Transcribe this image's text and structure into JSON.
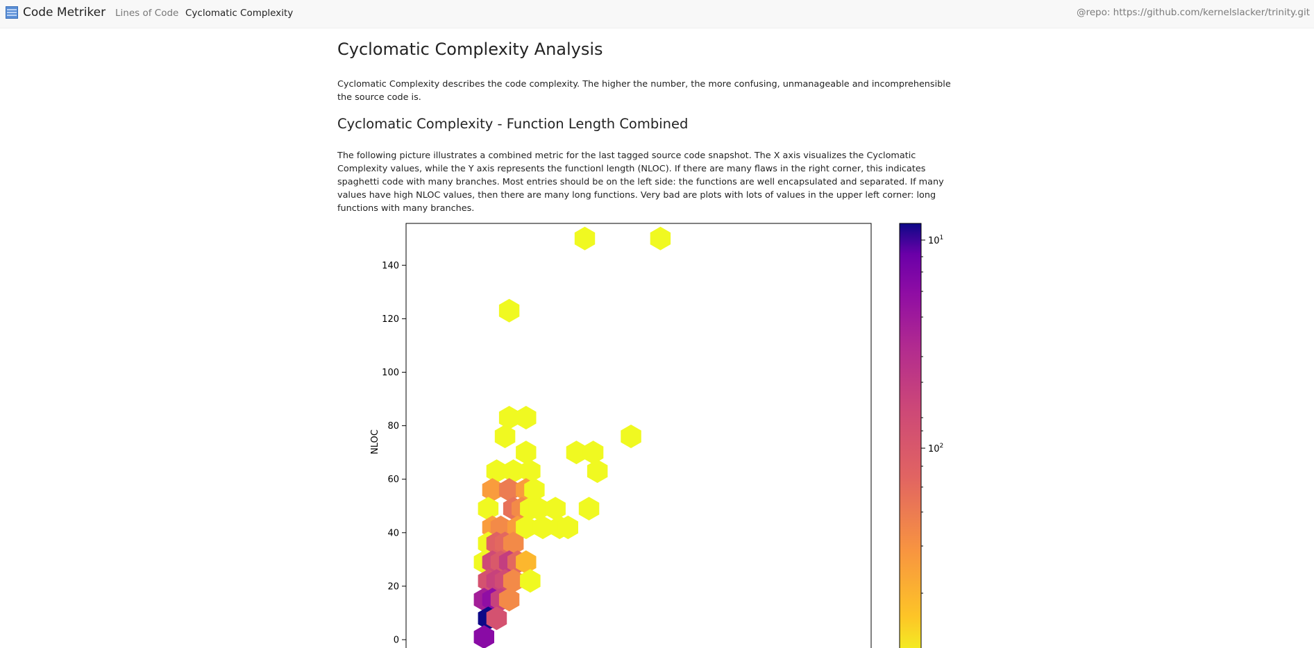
{
  "navbar": {
    "brand": "Code Metriker",
    "links": [
      "Lines of Code",
      "Cyclomatic Complexity"
    ],
    "repo": "@repo: https://github.com/kernelslacker/trinity.git"
  },
  "page": {
    "title": "Cyclomatic Complexity Analysis",
    "intro": "Cyclomatic Complexity describes the code complexity. The higher the number, the more confusing, unmanageable and incomprehensible the source code is.",
    "section_title": "Cyclomatic Complexity - Function Length Combined",
    "section_text": "The following picture illustrates a combined metric for the last tagged source code snapshot. The X axis visualizes the Cyclomatic Complexity values, while the Y axis represents the functionl length (NLOC). If there are many flaws in the right corner, this indicates spaghetti code with many branches. Most entries should be on the left side: the functions are well encapsulated and separated. If many values have high NLOC values, then there are many long functions. Very bad are plots with lots of values in the upper left corner: long functions with many branches."
  },
  "chart_data": {
    "type": "heatmap",
    "ylabel": "NLOC",
    "yticks": [
      0,
      20,
      40,
      60,
      80,
      100,
      120,
      140
    ],
    "ylim": [
      -3,
      156
    ],
    "colorbar": {
      "scale": "log",
      "ticks": [
        "10^1",
        "10^2"
      ],
      "colormap": "plasma_r"
    },
    "colors": {
      "low": "#f0f921",
      "high": "#0d0887"
    },
    "cells": [
      {
        "x": 1,
        "y": 150,
        "count": 1
      },
      {
        "x": 2.8,
        "y": 150,
        "count": 1
      },
      {
        "x": -0.8,
        "y": 123,
        "count": 1
      },
      {
        "x": -0.8,
        "y": 83,
        "count": 1
      },
      {
        "x": -0.4,
        "y": 83,
        "count": 1
      },
      {
        "x": -0.9,
        "y": 76,
        "count": 1
      },
      {
        "x": 2.1,
        "y": 76,
        "count": 1
      },
      {
        "x": -0.4,
        "y": 70,
        "count": 1
      },
      {
        "x": 0.8,
        "y": 70,
        "count": 1
      },
      {
        "x": 1.2,
        "y": 70,
        "count": 1
      },
      {
        "x": -1.1,
        "y": 63,
        "count": 1
      },
      {
        "x": -0.7,
        "y": 63,
        "count": 1
      },
      {
        "x": -0.3,
        "y": 63,
        "count": 1
      },
      {
        "x": 1.3,
        "y": 63,
        "count": 1
      },
      {
        "x": -1.2,
        "y": 56,
        "count": 3
      },
      {
        "x": -0.8,
        "y": 56,
        "count": 5
      },
      {
        "x": -0.4,
        "y": 56,
        "count": 3
      },
      {
        "x": -0.2,
        "y": 56,
        "count": 1
      },
      {
        "x": -1.3,
        "y": 49,
        "count": 1
      },
      {
        "x": -0.7,
        "y": 49,
        "count": 6
      },
      {
        "x": -0.5,
        "y": 49,
        "count": 4
      },
      {
        "x": -0.3,
        "y": 49,
        "count": 1
      },
      {
        "x": -0.1,
        "y": 49,
        "count": 1
      },
      {
        "x": 0.3,
        "y": 49,
        "count": 1
      },
      {
        "x": 1.1,
        "y": 49,
        "count": 1
      },
      {
        "x": -1.2,
        "y": 42,
        "count": 3
      },
      {
        "x": -1.0,
        "y": 42,
        "count": 4
      },
      {
        "x": -0.6,
        "y": 42,
        "count": 3
      },
      {
        "x": -0.4,
        "y": 42,
        "count": 1
      },
      {
        "x": 0.0,
        "y": 42,
        "count": 1
      },
      {
        "x": 0.4,
        "y": 42,
        "count": 1
      },
      {
        "x": 0.6,
        "y": 42,
        "count": 1
      },
      {
        "x": -1.3,
        "y": 36,
        "count": 1
      },
      {
        "x": -1.1,
        "y": 36,
        "count": 8
      },
      {
        "x": -0.9,
        "y": 36,
        "count": 7
      },
      {
        "x": -0.7,
        "y": 36,
        "count": 4
      },
      {
        "x": -1.4,
        "y": 29,
        "count": 1
      },
      {
        "x": -1.2,
        "y": 29,
        "count": 15
      },
      {
        "x": -1.0,
        "y": 29,
        "count": 10
      },
      {
        "x": -0.8,
        "y": 29,
        "count": 20
      },
      {
        "x": -0.6,
        "y": 29,
        "count": 7
      },
      {
        "x": -0.4,
        "y": 29,
        "count": 2
      },
      {
        "x": -1.3,
        "y": 22,
        "count": 12
      },
      {
        "x": -1.1,
        "y": 22,
        "count": 18
      },
      {
        "x": -0.9,
        "y": 22,
        "count": 14
      },
      {
        "x": -0.7,
        "y": 22,
        "count": 4
      },
      {
        "x": -0.3,
        "y": 22,
        "count": 1
      },
      {
        "x": -1.4,
        "y": 15,
        "count": 40
      },
      {
        "x": -1.2,
        "y": 15,
        "count": 55
      },
      {
        "x": -1.0,
        "y": 15,
        "count": 18
      },
      {
        "x": -0.8,
        "y": 15,
        "count": 4
      },
      {
        "x": -1.3,
        "y": 8,
        "count": 120
      },
      {
        "x": -1.1,
        "y": 8,
        "count": 12
      },
      {
        "x": -1.4,
        "y": 1,
        "count": 60
      }
    ]
  }
}
